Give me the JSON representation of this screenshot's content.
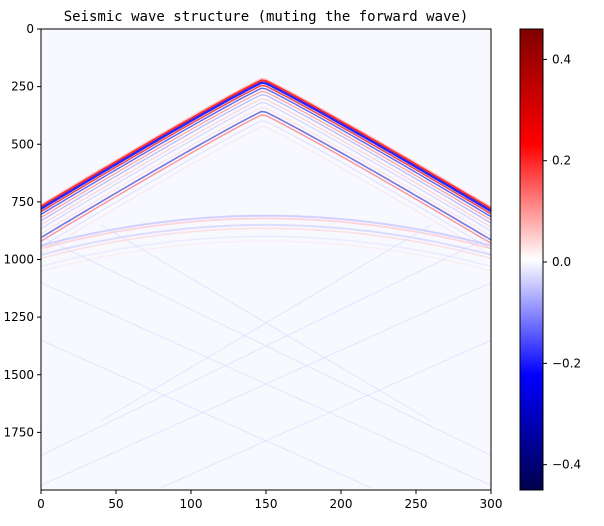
{
  "chart_data": {
    "type": "heatmap",
    "title": "Seismic wave structure (muting the forward wave)",
    "xlabel": "",
    "ylabel": "",
    "xlim": [
      0,
      300
    ],
    "ylim": [
      2000,
      0
    ],
    "x_ticks": [
      0,
      50,
      100,
      150,
      200,
      250,
      300
    ],
    "y_ticks": [
      0,
      250,
      500,
      750,
      1000,
      1250,
      1500,
      1750
    ],
    "colormap": "seismic",
    "colorbar": {
      "vmin": -0.45,
      "vmax": 0.46,
      "ticks": [
        0.4,
        0.2,
        0.0,
        -0.2,
        -0.4
      ],
      "tick_labels": [
        "0.4",
        "0.2",
        "0.0",
        "−0.2",
        "−0.4"
      ],
      "colors": [
        "#00004d",
        "#0000ff",
        "#ffffff",
        "#ff0000",
        "#800000"
      ]
    },
    "features": {
      "direct_wave_apex": {
        "trace": 148,
        "time": 220
      },
      "direct_wave_left_time": 770,
      "direct_wave_right_time": 780,
      "reflection_apex": {
        "trace": 150,
        "time": 810
      },
      "reflection_edge_time": 940,
      "muted_region": "above direct wave"
    },
    "grid": false,
    "legend": "none"
  }
}
